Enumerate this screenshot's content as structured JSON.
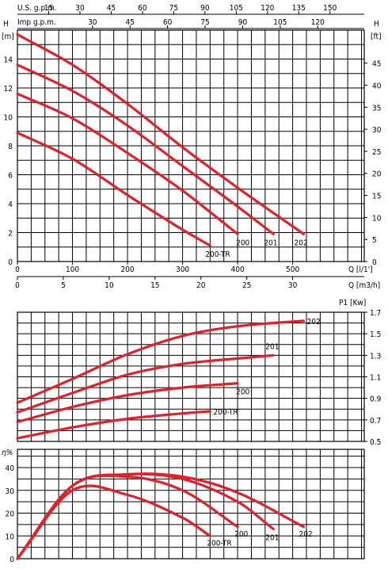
{
  "colors": {
    "curve": "#e0202a",
    "grid": "#000000",
    "background": "#ffffff"
  },
  "chart_data": [
    {
      "type": "line",
      "chart": "head-vs-flow",
      "title": "",
      "ylabel_left": "H",
      "ylabel_left_unit": "[m]",
      "ylabel_right": "H",
      "ylabel_right_unit": "[ft]",
      "xlabel_top_us": "U.S.  g.p.m.",
      "xlabel_top_imp": "Imp  g.p.m.",
      "xlabel_lmin": "Q  [l/1']",
      "xlabel_m3h": "Q  [m3/h]",
      "x_unit": "l/min",
      "xlim": [
        0,
        630
      ],
      "ylim": [
        0,
        16
      ],
      "y_ticks": [
        0,
        2,
        4,
        6,
        8,
        10,
        12,
        14
      ],
      "y_ticks_right_ft": [
        0,
        5,
        10,
        15,
        20,
        25,
        30,
        35,
        40,
        45
      ],
      "x_ticks_lmin": [
        0,
        100,
        200,
        300,
        400,
        500
      ],
      "x_ticks_m3h": [
        0,
        5,
        10,
        15,
        20,
        25,
        30
      ],
      "x_ticks_us_gpm": [
        15,
        30,
        45,
        60,
        75,
        90,
        105,
        120,
        135,
        150
      ],
      "x_ticks_imp_gpm": [
        30,
        45,
        60,
        75,
        90,
        105,
        120
      ],
      "grid": true,
      "series": [
        {
          "name": "202",
          "x": [
            0,
            100,
            200,
            300,
            400,
            520
          ],
          "y": [
            15.7,
            13.6,
            10.9,
            7.9,
            5.1,
            1.9
          ]
        },
        {
          "name": "201",
          "x": [
            0,
            100,
            200,
            300,
            400,
            465
          ],
          "y": [
            13.6,
            11.8,
            9.4,
            6.6,
            3.8,
            1.9
          ]
        },
        {
          "name": "200",
          "x": [
            0,
            100,
            200,
            300,
            400
          ],
          "y": [
            11.6,
            9.9,
            7.5,
            4.9,
            1.9
          ]
        },
        {
          "name": "200-TR",
          "x": [
            0,
            100,
            200,
            300,
            350
          ],
          "y": [
            8.9,
            7.1,
            4.6,
            2.2,
            1.1
          ]
        }
      ]
    },
    {
      "type": "line",
      "chart": "power-vs-flow",
      "title": "",
      "ylabel_right": "P1  [Kw]",
      "x_unit": "l/min",
      "xlim": [
        0,
        630
      ],
      "ylim": [
        0.5,
        1.7
      ],
      "y_ticks_right": [
        0.5,
        0.7,
        0.9,
        1.1,
        1.3,
        1.5,
        1.7
      ],
      "grid": true,
      "series": [
        {
          "name": "202",
          "x": [
            0,
            100,
            200,
            300,
            400,
            520
          ],
          "y": [
            0.86,
            1.08,
            1.31,
            1.48,
            1.57,
            1.62
          ]
        },
        {
          "name": "201",
          "x": [
            0,
            100,
            200,
            300,
            400,
            465
          ],
          "y": [
            0.77,
            0.95,
            1.12,
            1.22,
            1.27,
            1.3
          ]
        },
        {
          "name": "200",
          "x": [
            0,
            100,
            200,
            300,
            400
          ],
          "y": [
            0.68,
            0.82,
            0.93,
            1.0,
            1.04
          ]
        },
        {
          "name": "200-TR",
          "x": [
            0,
            100,
            200,
            300,
            350
          ],
          "y": [
            0.53,
            0.63,
            0.71,
            0.76,
            0.78
          ]
        }
      ]
    },
    {
      "type": "line",
      "chart": "efficiency-vs-flow",
      "title": "",
      "ylabel_left": "η%",
      "x_unit": "l/min",
      "xlim": [
        0,
        630
      ],
      "ylim": [
        0,
        48
      ],
      "y_ticks": [
        0,
        10,
        20,
        30,
        40
      ],
      "grid": true,
      "series": [
        {
          "name": "202",
          "x": [
            0,
            100,
            200,
            300,
            400,
            520
          ],
          "y": [
            0,
            32,
            37,
            36,
            29,
            14
          ]
        },
        {
          "name": "201",
          "x": [
            0,
            100,
            200,
            300,
            400,
            465
          ],
          "y": [
            0,
            32,
            37,
            35,
            25,
            13
          ]
        },
        {
          "name": "200",
          "x": [
            0,
            100,
            200,
            300,
            400
          ],
          "y": [
            0,
            32,
            36,
            30,
            14
          ]
        },
        {
          "name": "200-TR",
          "x": [
            0,
            100,
            200,
            300,
            350
          ],
          "y": [
            0,
            30,
            28,
            18,
            10
          ]
        }
      ]
    }
  ]
}
